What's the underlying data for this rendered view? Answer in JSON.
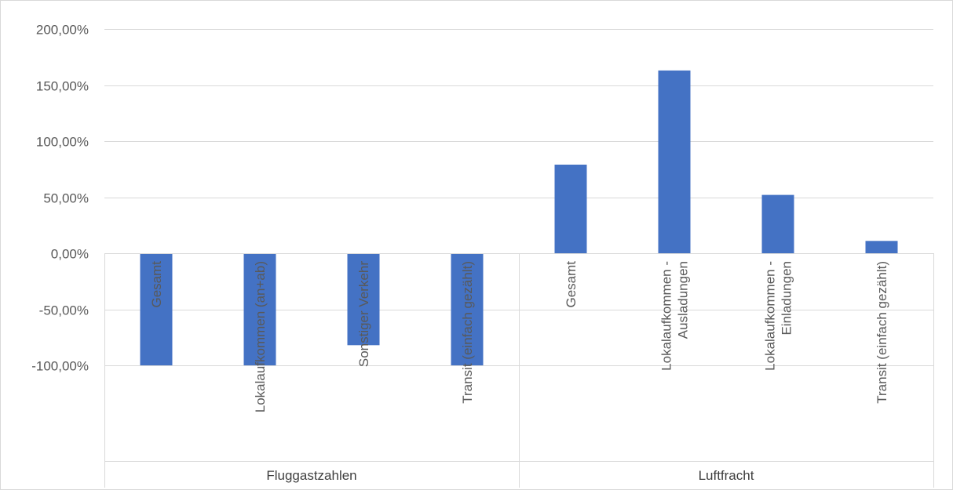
{
  "chart_data": {
    "type": "bar",
    "title": "",
    "xlabel": "",
    "ylabel": "",
    "ylim": [
      -100,
      200
    ],
    "ytick_values": [
      200,
      150,
      100,
      50,
      0,
      -50,
      -100
    ],
    "ytick_labels": [
      "200,00%",
      "150,00%",
      "100,00%",
      "50,00%",
      "0,00%",
      "-50,00%",
      "-100,00%"
    ],
    "grid": true,
    "legend": "none",
    "bar_color": "#4472C4",
    "groups": [
      {
        "name": "Fluggastzahlen",
        "categories": [
          [
            "Gesamt"
          ],
          [
            "Lokalaufkommen (an+ab)"
          ],
          [
            "Sonstiger Verkehr"
          ],
          [
            "Transit (einfach gezählt)"
          ]
        ]
      },
      {
        "name": "Luftfracht",
        "categories": [
          [
            "Gesamt"
          ],
          [
            "Lokalaufkommen -",
            "Ausladungen"
          ],
          [
            "Lokalaufkommen -",
            "Einladungen"
          ],
          [
            "Transit (einfach gezählt)"
          ]
        ]
      }
    ],
    "series": [
      {
        "values": [
          -100,
          -100,
          -82,
          -100,
          79,
          163,
          52,
          11
        ]
      }
    ]
  }
}
